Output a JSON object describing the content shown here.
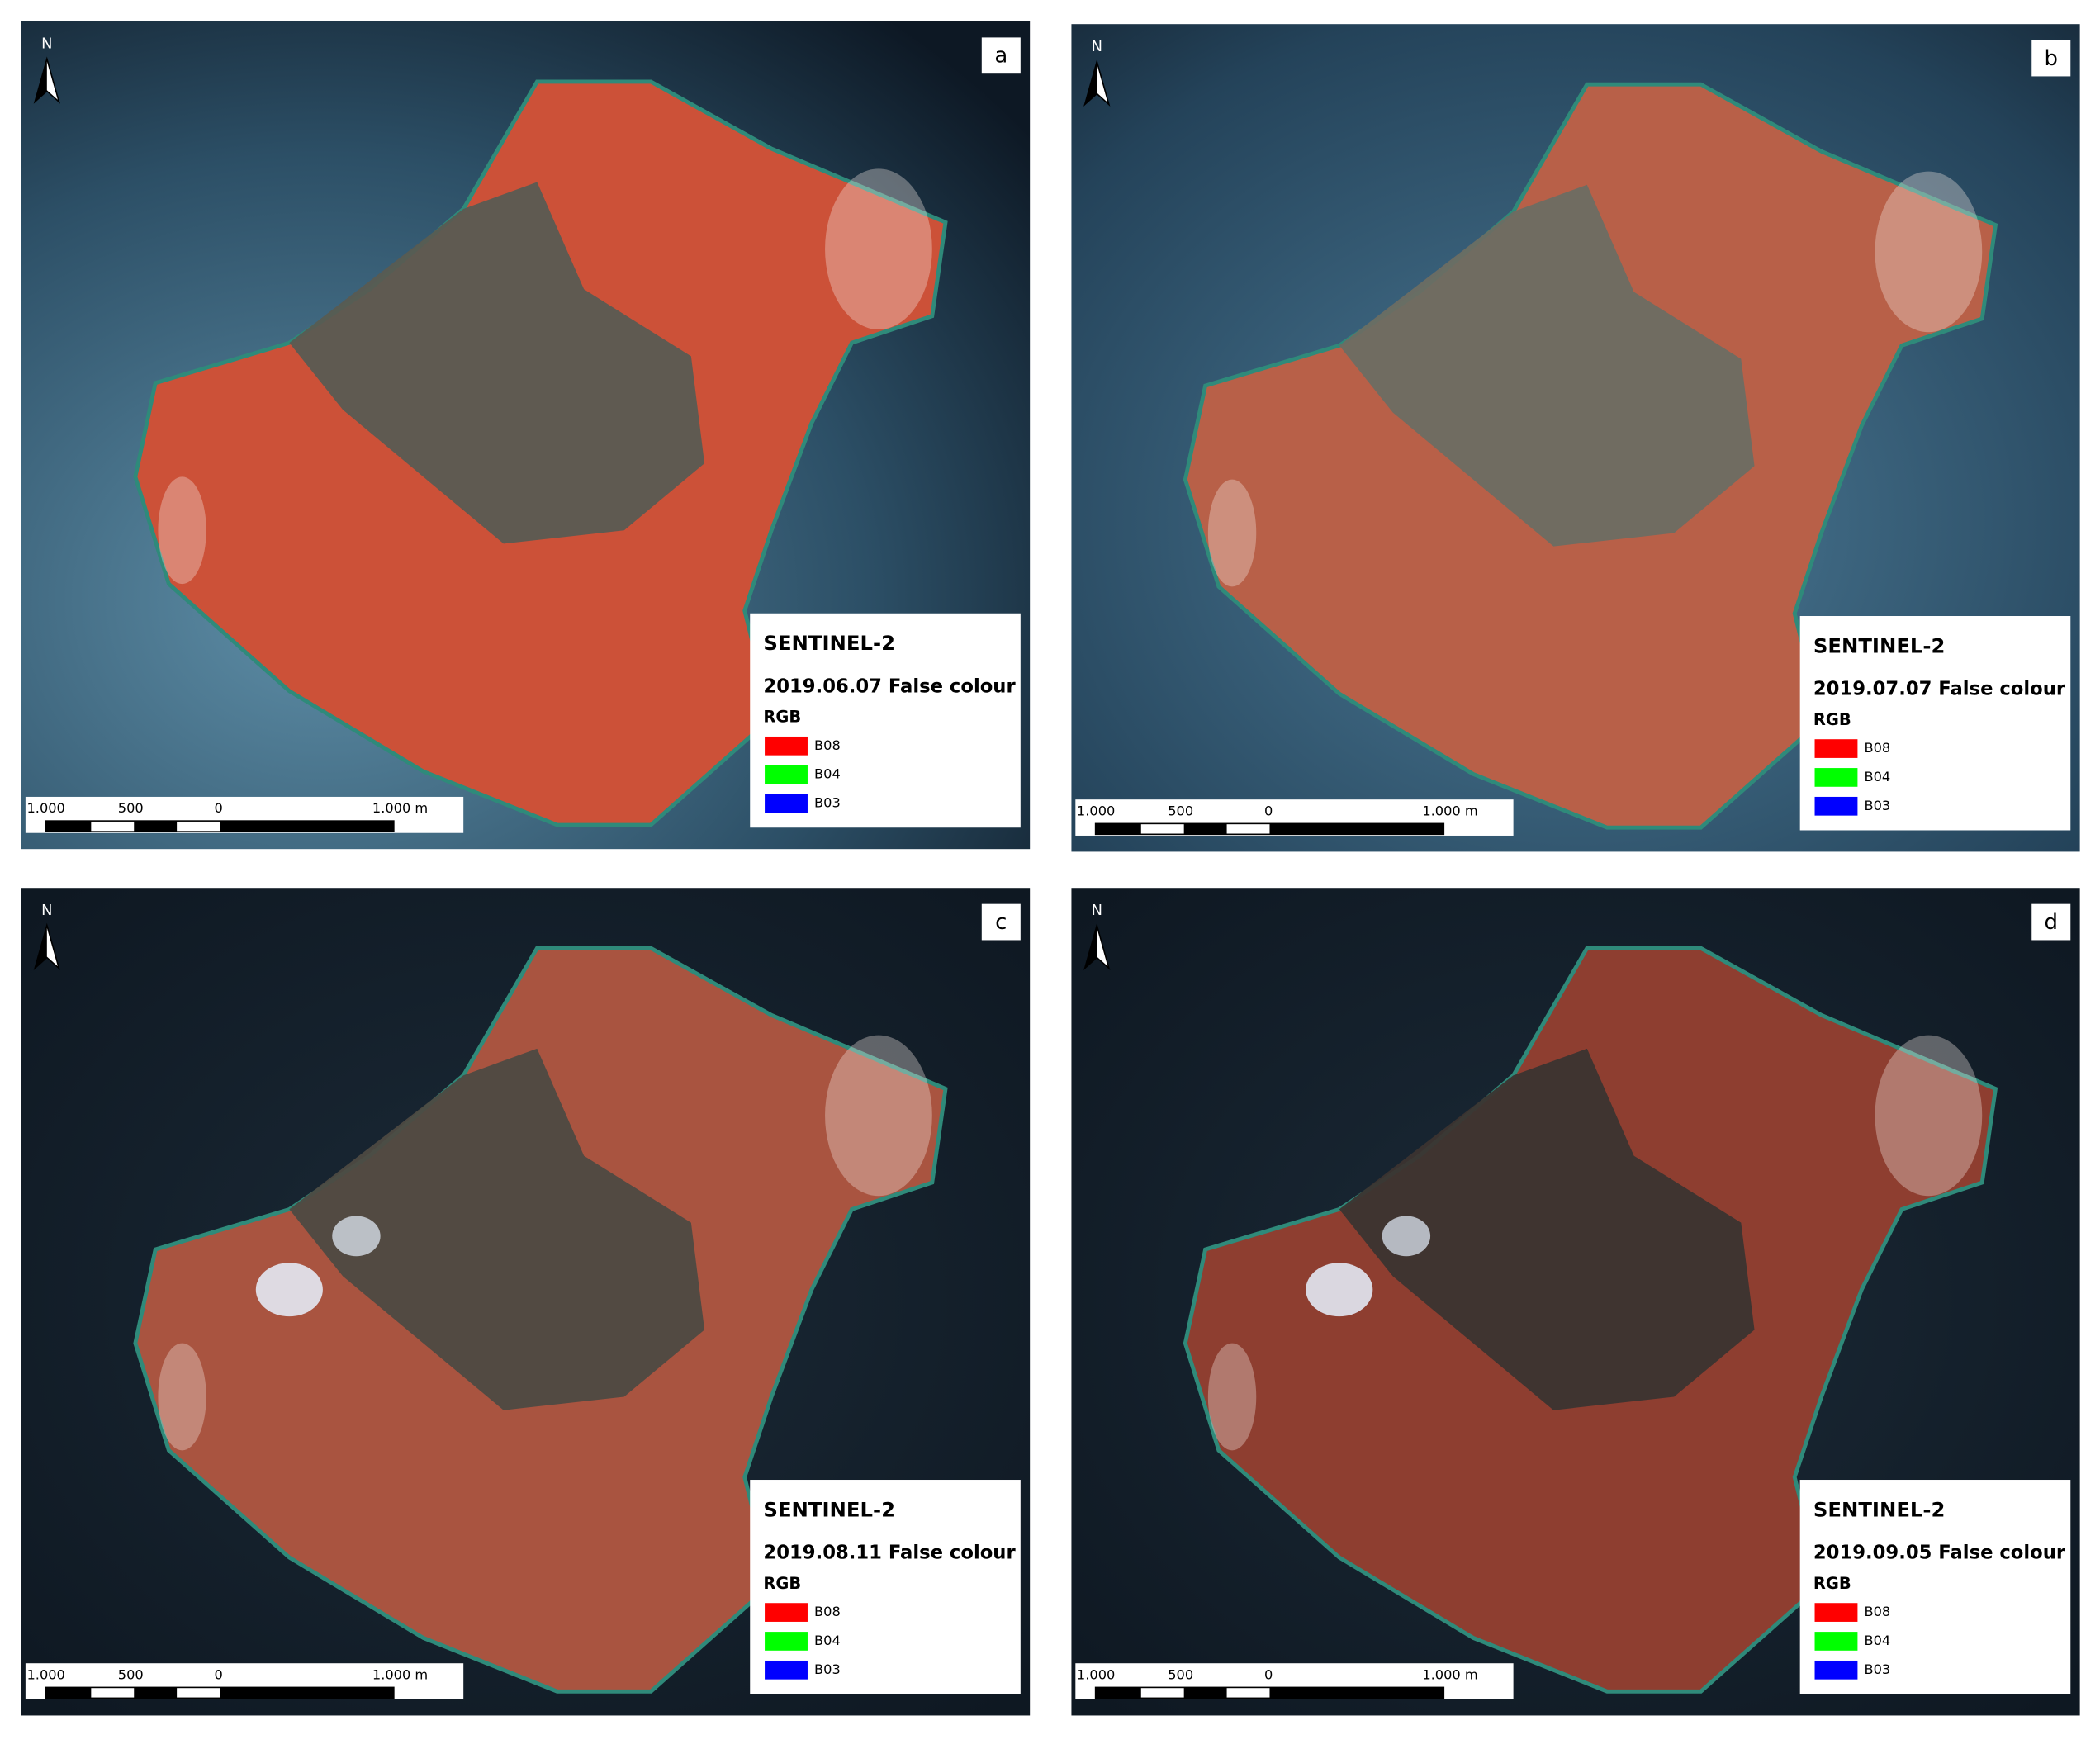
{
  "panels": [
    {
      "label": "a",
      "north": "N",
      "title": "SENTINEL-2",
      "date": "2019.06.07 False colour",
      "rgb": "RGB",
      "bands": [
        {
          "name": "B08",
          "color": "#ff0000"
        },
        {
          "name": "B04",
          "color": "#00ff00"
        },
        {
          "name": "B03",
          "color": "#0000ff"
        }
      ],
      "scale": [
        "1.000",
        "500",
        "0",
        "1.000 m"
      ]
    },
    {
      "label": "b",
      "north": "N",
      "title": "SENTINEL-2",
      "date": "2019.07.07 False colour",
      "rgb": "RGB",
      "bands": [
        {
          "name": "B08",
          "color": "#ff0000"
        },
        {
          "name": "B04",
          "color": "#00ff00"
        },
        {
          "name": "B03",
          "color": "#0000ff"
        }
      ],
      "scale": [
        "1.000",
        "500",
        "0",
        "1.000 m"
      ]
    },
    {
      "label": "c",
      "north": "N",
      "title": "SENTINEL-2",
      "date": "2019.08.11 False colour",
      "rgb": "RGB",
      "bands": [
        {
          "name": "B08",
          "color": "#ff0000"
        },
        {
          "name": "B04",
          "color": "#00ff00"
        },
        {
          "name": "B03",
          "color": "#0000ff"
        }
      ],
      "scale": [
        "1.000",
        "500",
        "0",
        "1.000 m"
      ]
    },
    {
      "label": "d",
      "north": "N",
      "title": "SENTINEL-2",
      "date": "2019.09.05 False colour",
      "rgb": "RGB",
      "bands": [
        {
          "name": "B08",
          "color": "#ff0000"
        },
        {
          "name": "B04",
          "color": "#00ff00"
        },
        {
          "name": "B03",
          "color": "#0000ff"
        }
      ],
      "scale": [
        "1.000",
        "500",
        "0",
        "1.000 m"
      ]
    }
  ]
}
